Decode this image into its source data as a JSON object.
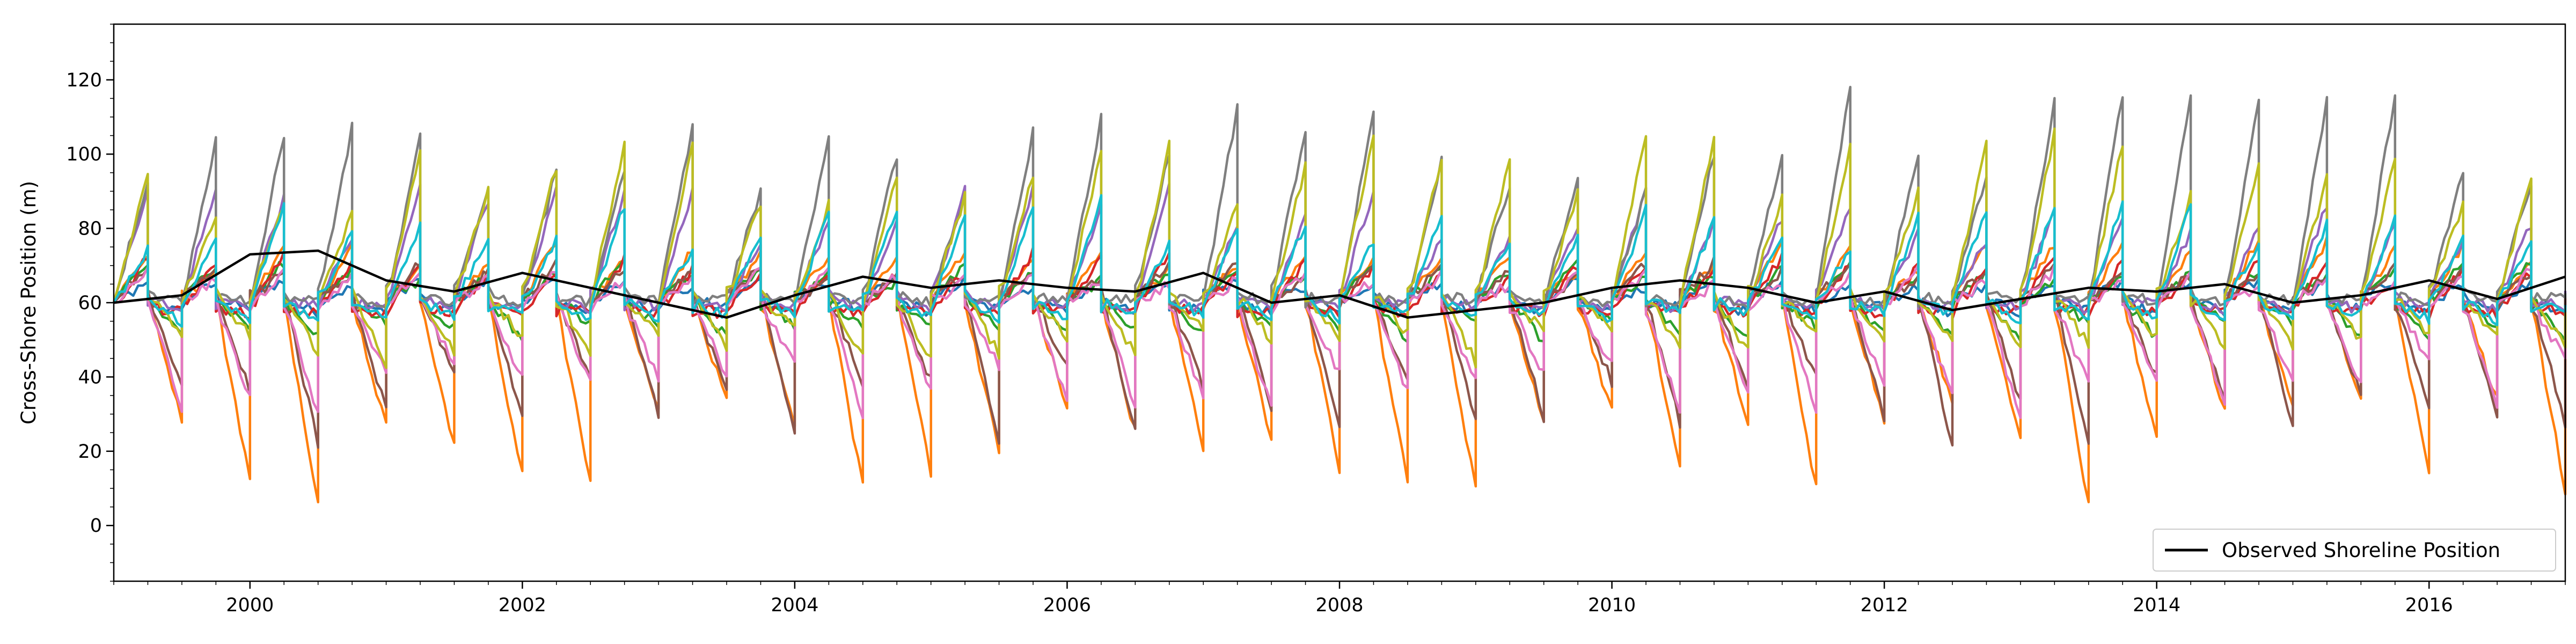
{
  "chart_data": {
    "type": "line",
    "title": "",
    "xlabel": "",
    "ylabel": "Cross-Shore Position (m)",
    "xlim": [
      "1999-01-01",
      "2017-01-01"
    ],
    "ylim": [
      -15,
      135
    ],
    "x_ticks": [
      "2000",
      "2002",
      "2004",
      "2006",
      "2008",
      "2010",
      "2012",
      "2014",
      "2016"
    ],
    "y_ticks": [
      0,
      20,
      40,
      60,
      80,
      100,
      120
    ],
    "grid": false,
    "legend": {
      "position": "lower-right",
      "entries": [
        "Observed Shoreline Position"
      ]
    },
    "observed": {
      "name": "Observed Shoreline Position",
      "color": "#000000",
      "x": [
        "1999-01",
        "1999-07",
        "2000-01",
        "2000-07",
        "2001-01",
        "2001-07",
        "2002-01",
        "2002-07",
        "2003-01",
        "2003-07",
        "2004-01",
        "2004-07",
        "2005-01",
        "2005-07",
        "2006-01",
        "2006-07",
        "2007-01",
        "2007-07",
        "2008-01",
        "2008-07",
        "2009-01",
        "2009-07",
        "2010-01",
        "2010-07",
        "2011-01",
        "2011-07",
        "2012-01",
        "2012-07",
        "2013-01",
        "2013-07",
        "2014-01",
        "2014-07",
        "2015-01",
        "2015-07",
        "2016-01",
        "2016-07",
        "2017-01"
      ],
      "y": [
        60,
        62,
        73,
        74,
        66,
        63,
        68,
        64,
        60,
        56,
        62,
        67,
        64,
        66,
        64,
        63,
        68,
        60,
        62,
        56,
        58,
        60,
        64,
        66,
        64,
        60,
        63,
        58,
        61,
        64,
        63,
        65,
        60,
        62,
        66,
        61,
        67
      ]
    },
    "ensemble": {
      "description": "Unlabeled simulated shoreline trajectories with seasonal peaks and troughs",
      "periods_per_year": 4,
      "start_value": 60,
      "series": [
        {
          "color": "#1f77b4",
          "peak": 66,
          "trough": 57
        },
        {
          "color": "#ff7f0e",
          "peak": 75,
          "trough": 8
        },
        {
          "color": "#2ca02c",
          "peak": 70,
          "trough": 50
        },
        {
          "color": "#d62728",
          "peak": 72,
          "trough": 57
        },
        {
          "color": "#9467bd",
          "peak": 88,
          "trough": 58
        },
        {
          "color": "#8c564b",
          "peak": 70,
          "trough": 25
        },
        {
          "color": "#e377c2",
          "peak": 68,
          "trough": 30
        },
        {
          "color": "#7f7f7f",
          "peak": 112,
          "trough": 60
        },
        {
          "color": "#bcbd22",
          "peak": 100,
          "trough": 45
        },
        {
          "color": "#17becf",
          "peak": 85,
          "trough": 55
        }
      ]
    }
  }
}
